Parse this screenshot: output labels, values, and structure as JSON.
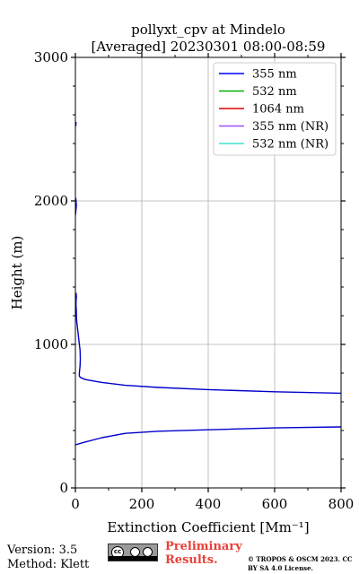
{
  "chart_data": {
    "type": "line",
    "title_line1": "pollyxt_cpv at Mindelo",
    "title_line2": "[Averaged] 20230301 08:00-08:59",
    "xlabel": "Extinction Coefficient [Mm⁻¹]",
    "ylabel": "Height (m)",
    "xlim": [
      0,
      800
    ],
    "ylim": [
      0,
      3000
    ],
    "xticks": [
      "0",
      "200",
      "400",
      "600",
      "800"
    ],
    "yticks": [
      "0",
      "1000",
      "2000",
      "3000"
    ],
    "grid": true,
    "legend_position": "top-right",
    "legend": [
      {
        "label": "355 nm",
        "color": "#0000ff"
      },
      {
        "label": "532 nm",
        "color": "#00b000"
      },
      {
        "label": "1064 nm",
        "color": "#e00000"
      },
      {
        "label": "355 nm (NR)",
        "color": "#9a4dff"
      },
      {
        "label": "532 nm (NR)",
        "color": "#40e0d0"
      }
    ],
    "series": [
      {
        "name": "355 nm",
        "color": "#0000cc",
        "segments": [
          [
            [
              0,
              300
            ],
            [
              30,
              320
            ],
            [
              80,
              350
            ],
            [
              150,
              380
            ],
            [
              250,
              395
            ],
            [
              400,
              405
            ],
            [
              600,
              418
            ],
            [
              800,
              425
            ]
          ],
          [
            [
              800,
              660
            ],
            [
              600,
              670
            ],
            [
              400,
              685
            ],
            [
              250,
              700
            ],
            [
              150,
              715
            ],
            [
              80,
              735
            ],
            [
              30,
              755
            ],
            [
              15,
              770
            ],
            [
              12,
              780
            ],
            [
              12,
              800
            ],
            [
              14,
              850
            ],
            [
              15,
              900
            ],
            [
              14,
              960
            ],
            [
              10,
              1040
            ],
            [
              7,
              1100
            ],
            [
              4,
              1160
            ],
            [
              3,
              1200
            ],
            [
              3,
              1230
            ],
            [
              2,
              1270
            ],
            [
              2,
              1300
            ],
            [
              3,
              1330
            ],
            [
              2,
              1360
            ]
          ],
          [
            [
              0,
              1900
            ],
            [
              2,
              1940
            ],
            [
              3,
              1970
            ],
            [
              2,
              2000
            ],
            [
              1,
              2020
            ]
          ],
          [
            [
              1,
              2520
            ],
            [
              2,
              2550
            ]
          ]
        ]
      }
    ]
  },
  "footer": {
    "version": "Version: 3.5",
    "method": "Method: Klett",
    "license_badge": "cc-by-sa-icon",
    "preliminary": "Preliminary Results.",
    "copyright": "© TROPOS & OSCM 2023. CC BY SA 4.0 License.",
    "preliminary_color": "#e8403a"
  }
}
